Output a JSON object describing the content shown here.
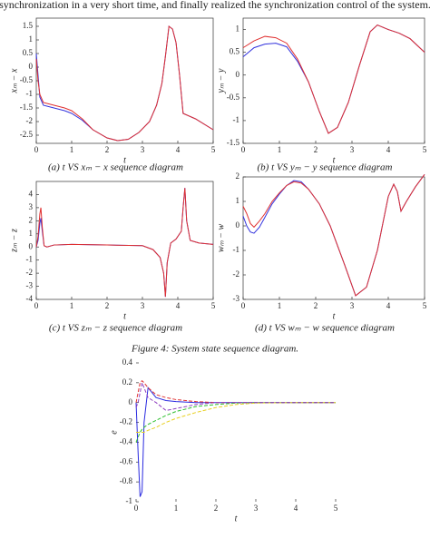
{
  "header_text": "synchronization in a very short time, and finally realized the synchronization control of the system.",
  "figure_caption": "Figure 4: System state sequence diagram.",
  "chart_data": [
    {
      "type": "line",
      "caption": "(a) t VS  xₘ − x  sequence diagram",
      "x_label": "t",
      "y_label": "xₘ − x",
      "x": [
        0,
        0.05,
        0.1,
        0.2,
        0.35,
        0.5,
        0.8,
        1,
        1.3,
        1.6,
        2,
        2.3,
        2.6,
        2.9,
        3.2,
        3.4,
        3.55,
        3.65,
        3.75,
        3.85,
        3.95,
        4.05,
        4.15,
        4.5,
        5
      ],
      "series": [
        {
          "color": "#3333dd",
          "values": [
            0.5,
            -0.3,
            -1.1,
            -1.4,
            -1.45,
            -1.5,
            -1.6,
            -1.7,
            -1.95,
            -2.3,
            -2.6,
            -2.7,
            -2.65,
            -2.4,
            -2,
            -1.4,
            -0.6,
            0.4,
            1.5,
            1.4,
            0.9,
            -0.3,
            -1.7,
            -1.9,
            -2.3
          ]
        },
        {
          "color": "#e03030",
          "values": [
            0.3,
            -0.5,
            -1.0,
            -1.3,
            -1.35,
            -1.4,
            -1.5,
            -1.6,
            -1.9,
            -2.3,
            -2.6,
            -2.7,
            -2.65,
            -2.4,
            -2,
            -1.4,
            -0.6,
            0.4,
            1.5,
            1.4,
            0.9,
            -0.3,
            -1.7,
            -1.9,
            -2.3
          ]
        }
      ],
      "xlim": [
        0,
        5
      ],
      "xticks": [
        0,
        1,
        2,
        3,
        4,
        5
      ],
      "ylim": [
        -2.8,
        1.8
      ],
      "yticks": [
        -2.5,
        -2,
        -1.5,
        -1,
        -0.5,
        0,
        0.5,
        1,
        1.5
      ]
    },
    {
      "type": "line",
      "caption": "(b) t VS  yₘ − y    sequence diagram",
      "x_label": "t",
      "y_label": "yₘ − y",
      "x": [
        0,
        0.3,
        0.6,
        0.9,
        1.2,
        1.5,
        1.8,
        2.1,
        2.35,
        2.6,
        2.9,
        3.2,
        3.5,
        3.7,
        4,
        4.3,
        4.6,
        5
      ],
      "series": [
        {
          "color": "#3333dd",
          "values": [
            0.4,
            0.6,
            0.68,
            0.7,
            0.62,
            0.3,
            -0.15,
            -0.8,
            -1.28,
            -1.15,
            -0.6,
            0.2,
            0.95,
            1.1,
            1.0,
            0.92,
            0.8,
            0.5
          ]
        },
        {
          "color": "#e03030",
          "values": [
            0.6,
            0.75,
            0.85,
            0.82,
            0.7,
            0.35,
            -0.15,
            -0.8,
            -1.28,
            -1.15,
            -0.6,
            0.2,
            0.95,
            1.1,
            1.0,
            0.92,
            0.8,
            0.5
          ]
        }
      ],
      "xlim": [
        0,
        5
      ],
      "xticks": [
        0,
        1,
        2,
        3,
        4,
        5
      ],
      "ylim": [
        -1.5,
        1.25
      ],
      "yticks": [
        -1.5,
        -1,
        -0.5,
        0,
        0.5,
        1
      ]
    },
    {
      "type": "line",
      "caption": "(c) t VS  zₘ − z  sequence diagram",
      "x_label": "t",
      "y_label": "zₘ − z",
      "x": [
        0,
        0.05,
        0.1,
        0.13,
        0.17,
        0.22,
        0.3,
        0.5,
        1,
        2,
        3,
        3.3,
        3.5,
        3.6,
        3.65,
        3.7,
        3.8,
        3.95,
        4.1,
        4.15,
        4.2,
        4.25,
        4.35,
        4.6,
        5
      ],
      "series": [
        {
          "color": "#3333dd",
          "values": [
            0,
            0.5,
            1.8,
            2.2,
            1.2,
            0.1,
            0,
            0.15,
            0.2,
            0.15,
            0.1,
            -0.2,
            -0.8,
            -2,
            -3.8,
            -1.2,
            0.3,
            0.6,
            1.2,
            3,
            4.5,
            2,
            0.5,
            0.3,
            0.2
          ]
        },
        {
          "color": "#e03030",
          "values": [
            0,
            0.8,
            2.5,
            3,
            1.5,
            0.1,
            0,
            0.15,
            0.2,
            0.15,
            0.1,
            -0.2,
            -0.8,
            -2,
            -3.8,
            -1.2,
            0.3,
            0.6,
            1.2,
            3,
            4.5,
            2,
            0.5,
            0.3,
            0.2
          ]
        }
      ],
      "xlim": [
        0,
        5
      ],
      "xticks": [
        0,
        1,
        2,
        3,
        4,
        5
      ],
      "ylim": [
        -4,
        5
      ],
      "yticks": [
        -4,
        -3,
        -2,
        -1,
        0,
        1,
        2,
        3,
        4
      ]
    },
    {
      "type": "line",
      "caption": "(d) t VS  wₘ − w  sequence diagram",
      "x_label": "t",
      "y_label": "wₘ − w",
      "x": [
        0,
        0.1,
        0.2,
        0.3,
        0.45,
        0.6,
        0.8,
        1,
        1.2,
        1.4,
        1.6,
        1.8,
        2.1,
        2.4,
        2.8,
        3.1,
        3.4,
        3.7,
        4,
        4.15,
        4.25,
        4.35,
        4.5,
        4.75,
        5
      ],
      "series": [
        {
          "color": "#3333dd",
          "values": [
            0.4,
            0,
            -0.25,
            -0.3,
            -0.05,
            0.35,
            0.9,
            1.3,
            1.65,
            1.85,
            1.8,
            1.5,
            0.9,
            0,
            -1.6,
            -2.85,
            -2.5,
            -1,
            1.2,
            1.7,
            1.4,
            0.6,
            1,
            1.6,
            2.1
          ]
        },
        {
          "color": "#e03030",
          "values": [
            0.8,
            0.5,
            0.1,
            -0.05,
            0.2,
            0.5,
            1.0,
            1.35,
            1.65,
            1.8,
            1.75,
            1.5,
            0.9,
            0,
            -1.6,
            -2.85,
            -2.5,
            -1,
            1.2,
            1.7,
            1.4,
            0.6,
            1,
            1.6,
            2.1
          ]
        }
      ],
      "xlim": [
        0,
        5
      ],
      "xticks": [
        0,
        1,
        2,
        3,
        4,
        5
      ],
      "ylim": [
        -3,
        2
      ],
      "yticks": [
        -3,
        -2,
        -1,
        0,
        1,
        2
      ]
    },
    {
      "type": "line",
      "x_label": "t",
      "y_label": "e",
      "x": [
        0,
        0.05,
        0.1,
        0.15,
        0.2,
        0.3,
        0.5,
        0.75,
        1,
        1.5,
        2,
        2.5,
        3,
        4,
        5
      ],
      "series": [
        {
          "color": "#2a2ae0",
          "values": [
            0,
            -0.5,
            -0.95,
            -0.9,
            -0.2,
            0.15,
            0.05,
            0.02,
            0.01,
            0,
            0,
            0,
            0,
            0,
            0
          ]
        },
        {
          "color": "#e03030",
          "values": [
            0,
            0.1,
            0.2,
            0.22,
            0.2,
            0.15,
            0.08,
            0.05,
            0.03,
            0.01,
            0,
            0,
            0,
            0,
            0
          ]
        },
        {
          "color": "#30c030",
          "values": [
            -0.4,
            -0.35,
            -0.3,
            -0.27,
            -0.25,
            -0.22,
            -0.18,
            -0.13,
            -0.09,
            -0.04,
            -0.02,
            -0.005,
            0,
            0,
            0
          ]
        },
        {
          "color": "#e8d020",
          "values": [
            -0.3,
            -0.3,
            -0.3,
            -0.3,
            -0.3,
            -0.28,
            -0.25,
            -0.2,
            -0.16,
            -0.1,
            -0.05,
            -0.02,
            -0.005,
            0,
            0
          ]
        },
        {
          "color": "#9040c0",
          "values": [
            -0.05,
            0,
            0.1,
            0.2,
            0.15,
            0.05,
            0,
            -0.08,
            -0.06,
            -0.02,
            0,
            0,
            0,
            0,
            0
          ]
        }
      ],
      "xlim": [
        0,
        5
      ],
      "xticks": [
        0,
        1,
        2,
        3,
        4,
        5
      ],
      "ylim": [
        -1,
        0.4
      ],
      "yticks": [
        -1,
        -0.8,
        -0.6,
        -0.4,
        -0.2,
        0,
        0.2,
        0.4
      ]
    }
  ]
}
